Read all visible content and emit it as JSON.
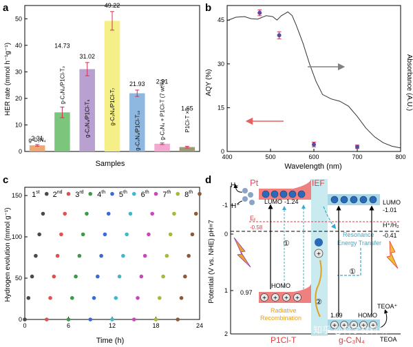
{
  "panels": {
    "a": "a",
    "b": "b",
    "c": "c",
    "d": "d"
  },
  "chart_data": [
    {
      "panel": "a",
      "type": "bar",
      "xlabel": "Samples",
      "ylabel": "HER rate (mmol h⁻¹g⁻¹)",
      "ylim": [
        0,
        55
      ],
      "yticks": [
        0,
        10,
        20,
        30,
        40,
        50
      ],
      "bars": [
        {
          "label": "g-C₃N₄",
          "value": 2.31,
          "value_label": "2.31",
          "err": 0.3,
          "color": "#f0a870"
        },
        {
          "label": "g-C₃N₄/P1Cl-T₃",
          "value": 14.73,
          "value_label": "14.73",
          "err": 2.0,
          "color": "#7cc57c"
        },
        {
          "label": "g-C₃N₄/P1Cl-T₅",
          "value": 31.02,
          "value_label": "31.02",
          "err": 2.5,
          "color": "#b8a0d0"
        },
        {
          "label": "g-C₃N₄/P1Cl-T₇",
          "value": 49.22,
          "value_label": "49.22",
          "err": 3.5,
          "color": "#f5ef88"
        },
        {
          "label": "g-C₃N₄/P1Cl-T₁₀",
          "value": 21.93,
          "value_label": "21.93",
          "err": 1.2,
          "color": "#8fb8e0"
        },
        {
          "label": "g-C₃N₄ + P1Cl-T (7 wt%)",
          "value": 2.91,
          "value_label": "2.91",
          "err": 0.3,
          "color": "#f2a8d0"
        },
        {
          "label": "P1Cl-T ×5",
          "value": 1.65,
          "value_label": "1.65",
          "err": 0.3,
          "color": "#9e9a78"
        }
      ]
    },
    {
      "panel": "b",
      "type": "line",
      "xlabel": "Wavelength (nm)",
      "ylabel": "AQY (%)",
      "y2label": "Absorbance (A.U.)",
      "xlim": [
        400,
        800
      ],
      "ylim": [
        0,
        50
      ],
      "xticks": [
        400,
        500,
        600,
        700,
        800
      ],
      "yticks": [
        0,
        15,
        30,
        45
      ],
      "aqy_points": [
        {
          "x": 475,
          "y": 47.5,
          "err": 1.0
        },
        {
          "x": 520,
          "y": 39.8,
          "err": 1.2
        },
        {
          "x": 600,
          "y": 2.4,
          "err": 0.8
        },
        {
          "x": 700,
          "y": 1.6,
          "err": 0.6
        }
      ],
      "absorbance_curve": [
        [
          400,
          44.8
        ],
        [
          420,
          46.0
        ],
        [
          440,
          46.2
        ],
        [
          455,
          45.5
        ],
        [
          470,
          45.3
        ],
        [
          490,
          46.5
        ],
        [
          505,
          46.2
        ],
        [
          515,
          45.0
        ],
        [
          525,
          46.5
        ],
        [
          540,
          47.8
        ],
        [
          550,
          46.5
        ],
        [
          560,
          43.0
        ],
        [
          575,
          37.0
        ],
        [
          590,
          30.0
        ],
        [
          605,
          24.0
        ],
        [
          620,
          19.5
        ],
        [
          640,
          18.0
        ],
        [
          660,
          17.2
        ],
        [
          680,
          15.5
        ],
        [
          700,
          12.0
        ],
        [
          720,
          8.0
        ],
        [
          740,
          5.0
        ],
        [
          760,
          3.0
        ],
        [
          780,
          1.8
        ],
        [
          800,
          1.2
        ]
      ]
    },
    {
      "panel": "c",
      "type": "scatter",
      "xlabel": "Time (h)",
      "ylabel": "Hydrogen evolution (mmol g⁻¹)",
      "xlim": [
        0,
        24
      ],
      "ylim": [
        0,
        160
      ],
      "xticks": [
        0,
        6,
        12,
        18,
        24
      ],
      "yticks": [
        0,
        50,
        100,
        150
      ],
      "cycles": [
        {
          "label": "1",
          "sup": "st",
          "x_offset": 0,
          "color": "#4a4a4a"
        },
        {
          "label": "2",
          "sup": "nd",
          "x_offset": 3,
          "color": "#e05050"
        },
        {
          "label": "3",
          "sup": "rd",
          "x_offset": 6,
          "color": "#3a9a48"
        },
        {
          "label": "4",
          "sup": "th",
          "x_offset": 9,
          "color": "#3a6ad8"
        },
        {
          "label": "5",
          "sup": "th",
          "x_offset": 12,
          "color": "#40b8c8"
        },
        {
          "label": "6",
          "sup": "th",
          "x_offset": 15,
          "color": "#c848b8"
        },
        {
          "label": "7",
          "sup": "th",
          "x_offset": 18,
          "color": "#a8b838"
        },
        {
          "label": "8",
          "sup": "th",
          "x_offset": 21,
          "color": "#8a5a3a"
        }
      ],
      "cycle_values": [
        0,
        26,
        52,
        77,
        103,
        128,
        152
      ]
    }
  ],
  "diagram_d": {
    "ylabel": "Potential (V vs. NHE) pH=7",
    "yticks": [
      "-1",
      "0",
      "1",
      "2"
    ],
    "pt": "Pt",
    "h2": "H₂",
    "hplus": "H⁺",
    "ief": "IEF",
    "lumo_left": "LUMO",
    "lumo_left_value": "-1.24",
    "lumo_right": "LUMO",
    "lumo_right_value": "-1.01",
    "ef_label": "E",
    "ef_sub": "f",
    "ef_value": "-0.58",
    "h_couple": "H⁺/H₂",
    "h_couple_value": "-0.41",
    "resonance": "Resonance",
    "energy_transfer": "Energy Transfer",
    "homo_left": "HOMO",
    "homo_left_value": "0.97",
    "homo_right": "HOMO",
    "homo_right_value": "1.69",
    "radiative": "Radiative",
    "recombination": "Recombination",
    "step1": "①",
    "step2": "②",
    "teoa_plus": "TEOA⁺",
    "teoa": "TEOA",
    "p1clt": "P1Cl-T",
    "c3n4": "C₃N₄",
    "c3n4_prefix": "g-",
    "watermark": "知乎 @科学材料站"
  }
}
